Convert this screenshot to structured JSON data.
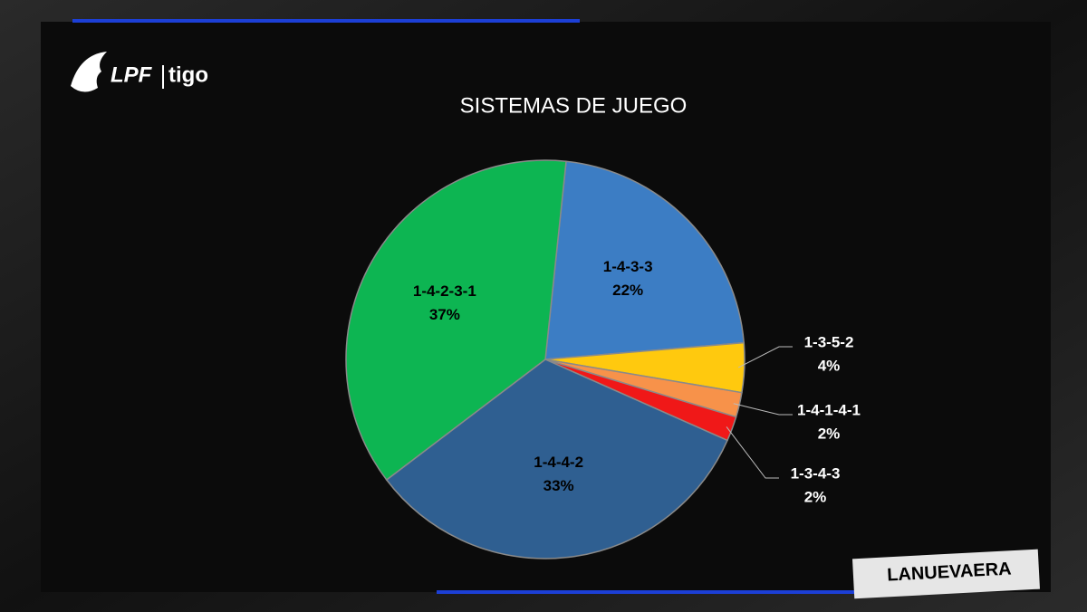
{
  "header": {
    "brand": "LPF",
    "sponsor": "tigo"
  },
  "chart_data": {
    "type": "pie",
    "title": "SISTEMAS DE JUEGO",
    "categories": [
      "1-4-3-3",
      "1-3-5-2",
      "1-4-1-4-1",
      "1-3-4-3",
      "1-4-4-2",
      "1-4-2-3-1"
    ],
    "values": [
      22,
      4,
      2,
      2,
      33,
      37
    ],
    "value_labels": [
      "22%",
      "4%",
      "2%",
      "2%",
      "33%",
      "37%"
    ],
    "colors": [
      "#3c7dc4",
      "#ffc90e",
      "#f7924a",
      "#f01818",
      "#2f5f91",
      "#0db552"
    ]
  },
  "badge": "LANUEVAERA"
}
